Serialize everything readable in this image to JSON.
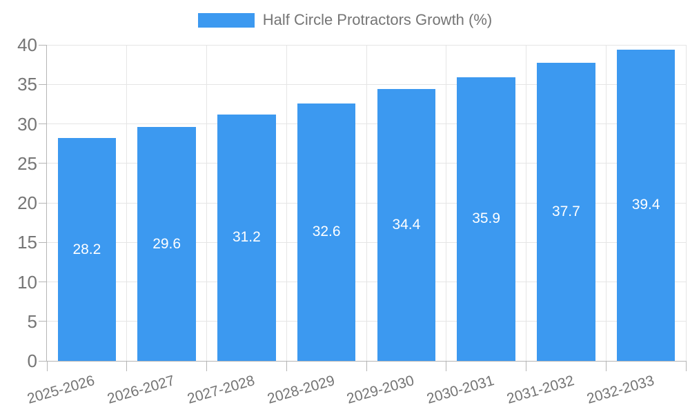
{
  "chart_data": {
    "type": "bar",
    "title": "Half Circle Protractors Growth (%)",
    "categories": [
      "2025-2026",
      "2026-2027",
      "2027-2028",
      "2028-2029",
      "2029-2030",
      "2030-2031",
      "2031-2032",
      "2032-2033"
    ],
    "series": [
      {
        "name": "Half Circle Protractors Growth (%)",
        "values": [
          28.2,
          29.6,
          31.2,
          32.6,
          34.4,
          35.9,
          37.7,
          39.4
        ]
      }
    ],
    "xlabel": "",
    "ylabel": "",
    "ylim": [
      0,
      40
    ],
    "ytick_step": 5,
    "ytick_labels": [
      "0",
      "5",
      "10",
      "15",
      "20",
      "25",
      "30",
      "35",
      "40"
    ],
    "grid": true,
    "legend_position": "top",
    "value_labels_position": "inside-center",
    "colors": {
      "bar": "#3C99F0",
      "grid": "#E5E5E5",
      "axis": "#B5B5B5",
      "tick_text": "#757575",
      "value_text": "#FFFFFF"
    }
  }
}
